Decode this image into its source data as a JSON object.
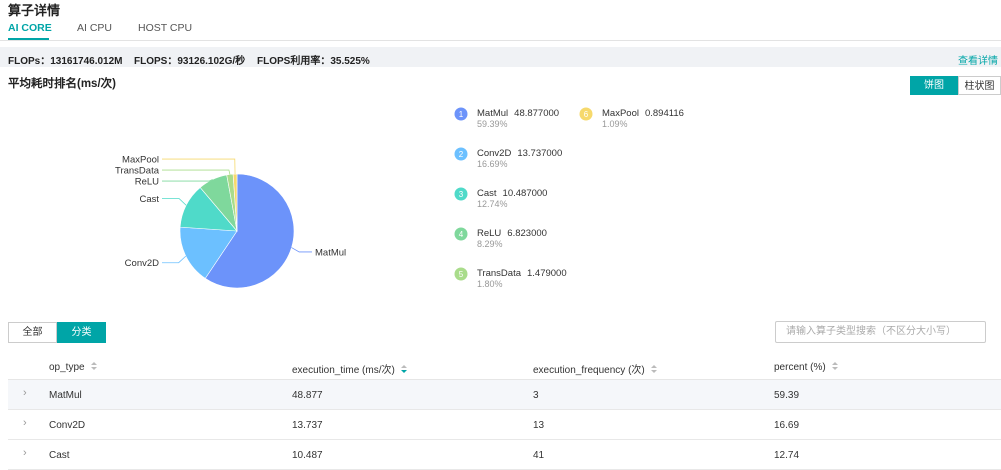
{
  "header": {
    "title": "算子详情"
  },
  "tabs": [
    "AI CORE",
    "AI CPU",
    "HOST CPU"
  ],
  "summary": {
    "items": [
      "FLOPs：13161746.012M",
      "FLOPS：93126.102G/秒",
      "FLOPS利用率：35.525%"
    ],
    "link": "查看详情"
  },
  "chart_section": {
    "title": "平均耗时排名(ms/次)",
    "view_toggle": [
      "饼图",
      "柱状图"
    ]
  },
  "chart_data": {
    "type": "pie",
    "categories": [
      "MatMul",
      "Conv2D",
      "Cast",
      "ReLU",
      "TransData",
      "MaxPool"
    ],
    "values": [
      48.877,
      13.737,
      10.487,
      6.823,
      1.479,
      0.894116
    ],
    "value_labels": [
      "48.877000",
      "13.737000",
      "10.487000",
      "6.823000",
      "1.479000",
      "0.894116"
    ],
    "percents": [
      59.39,
      16.69,
      12.74,
      8.29,
      1.8,
      1.09
    ],
    "percent_labels": [
      "59.39%",
      "16.69%",
      "12.74%",
      "8.29%",
      "1.80%",
      "1.09%"
    ],
    "ranks": [
      1,
      2,
      3,
      4,
      5,
      6
    ],
    "colors": [
      "#6c93fa",
      "#6cc0ff",
      "#4fdac9",
      "#7fd89c",
      "#a9dc8b",
      "#f6d96c"
    ]
  },
  "filter": {
    "buttons": [
      "全部",
      "分类"
    ],
    "search_placeholder": "请输入算子类型搜索（不区分大小写）"
  },
  "table": {
    "columns": [
      "op_type",
      "execution_time (ms/次)",
      "execution_frequency (次)",
      "percent (%)"
    ],
    "rows": [
      [
        "MatMul",
        48.877,
        3,
        59.39
      ],
      [
        "Conv2D",
        13.737,
        13,
        16.69
      ],
      [
        "Cast",
        10.487,
        41,
        12.74
      ]
    ]
  }
}
